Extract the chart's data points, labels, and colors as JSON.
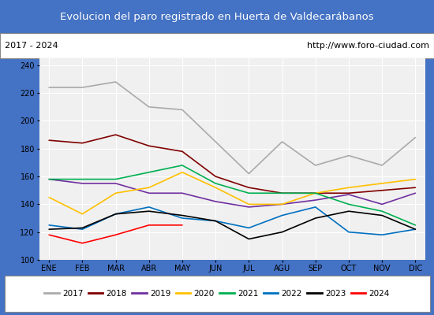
{
  "title": "Evolucion del paro registrado en Huerta de Valdecarábanos",
  "title_color": "#ffffff",
  "title_bg": "#4472c4",
  "subtitle_left": "2017 - 2024",
  "subtitle_right": "http://www.foro-ciudad.com",
  "months": [
    "ENE",
    "FEB",
    "MAR",
    "ABR",
    "MAY",
    "JUN",
    "JUL",
    "AGU",
    "SEP",
    "OCT",
    "NOV",
    "DIC"
  ],
  "ylim": [
    100,
    245
  ],
  "yticks": [
    100,
    120,
    140,
    160,
    180,
    200,
    220,
    240
  ],
  "series": {
    "2017": {
      "color": "#aaaaaa",
      "data": [
        224,
        224,
        228,
        210,
        208,
        185,
        162,
        185,
        168,
        175,
        168,
        188
      ]
    },
    "2018": {
      "color": "#800000",
      "data": [
        186,
        184,
        190,
        182,
        178,
        160,
        152,
        148,
        148,
        148,
        150,
        152
      ]
    },
    "2019": {
      "color": "#7030a0",
      "data": [
        158,
        155,
        155,
        148,
        148,
        142,
        138,
        140,
        143,
        147,
        140,
        148
      ]
    },
    "2020": {
      "color": "#ffc000",
      "data": [
        145,
        133,
        148,
        152,
        163,
        152,
        140,
        140,
        148,
        152,
        155,
        158
      ]
    },
    "2021": {
      "color": "#00b050",
      "data": [
        158,
        158,
        158,
        163,
        168,
        155,
        148,
        148,
        148,
        140,
        135,
        125
      ]
    },
    "2022": {
      "color": "#0070c0",
      "data": [
        125,
        122,
        133,
        138,
        130,
        128,
        123,
        132,
        138,
        120,
        118,
        122
      ]
    },
    "2023": {
      "color": "#000000",
      "data": [
        122,
        123,
        133,
        135,
        132,
        128,
        115,
        120,
        130,
        135,
        132,
        122
      ]
    },
    "2024": {
      "color": "#ff0000",
      "data": [
        118,
        112,
        118,
        125,
        125,
        null,
        null,
        null,
        null,
        null,
        null,
        null
      ]
    }
  }
}
